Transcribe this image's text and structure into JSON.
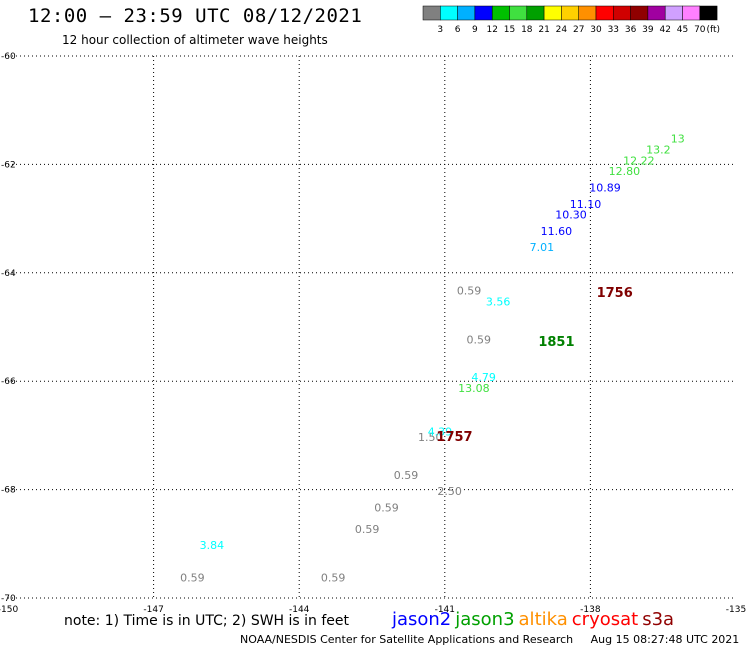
{
  "header": {
    "title": "12:00 – 23:59 UTC 08/12/2021",
    "subtitle": "12 hour collection of altimeter wave heights"
  },
  "colorbar": {
    "colors": [
      "#808080",
      "#00ffff",
      "#00b0ff",
      "#0000ff",
      "#00c000",
      "#40e040",
      "#00a000",
      "#ffff00",
      "#ffd000",
      "#ff9000",
      "#ff0000",
      "#d00000",
      "#900000",
      "#a000a0",
      "#d0a0ff",
      "#ff80ff",
      "#000000"
    ],
    "labels": [
      "3",
      "6",
      "9",
      "12",
      "15",
      "18",
      "21",
      "24",
      "27",
      "30",
      "33",
      "36",
      "39",
      "42",
      "45",
      "70"
    ],
    "unit": "(ft)"
  },
  "chart_data": {
    "type": "scatter",
    "title": "12:00 – 23:59 UTC 08/12/2021",
    "subtitle": "12 hour collection of altimeter wave heights",
    "xlabel": "",
    "ylabel": "",
    "xlim": [
      -150,
      -135
    ],
    "ylim": [
      -70,
      -60
    ],
    "x_ticks": [
      "-150",
      "-147",
      "-144",
      "-141",
      "-138",
      "-135"
    ],
    "y_ticks": [
      "-60",
      "-62",
      "-64",
      "-66",
      "-68",
      "-70"
    ],
    "grid": true,
    "series": [
      {
        "points": [
          {
            "x": -140.5,
            "y": -64.4,
            "label": "0.59",
            "color": "#808080"
          },
          {
            "x": -140.3,
            "y": -65.3,
            "label": "0.59",
            "color": "#808080"
          },
          {
            "x": -142.2,
            "y": -68.4,
            "label": "0.59",
            "color": "#808080"
          },
          {
            "x": -141.8,
            "y": -67.8,
            "label": "0.59",
            "color": "#808080"
          },
          {
            "x": -142.6,
            "y": -68.8,
            "label": "0.59",
            "color": "#808080"
          },
          {
            "x": -143.3,
            "y": -69.7,
            "label": "0.59",
            "color": "#808080"
          },
          {
            "x": -146.2,
            "y": -69.7,
            "label": "0.59",
            "color": "#808080"
          },
          {
            "x": -141.3,
            "y": -67.1,
            "label": "1.50",
            "color": "#808080"
          },
          {
            "x": -140.9,
            "y": -68.1,
            "label": "2.50",
            "color": "#808080"
          },
          {
            "x": -141.1,
            "y": -67.0,
            "label": "4.39",
            "color": "#00ffff"
          },
          {
            "x": -140.2,
            "y": -66.0,
            "label": "4.79",
            "color": "#00ffff"
          },
          {
            "x": -139.9,
            "y": -64.6,
            "label": "3.56",
            "color": "#00ffff"
          },
          {
            "x": -145.8,
            "y": -69.1,
            "label": "3.84",
            "color": "#00ffff"
          },
          {
            "x": -139.0,
            "y": -63.6,
            "label": "7.01",
            "color": "#00b0ff"
          },
          {
            "x": -140.4,
            "y": -66.2,
            "label": "13.08",
            "color": "#40e040"
          },
          {
            "x": -138.7,
            "y": -63.3,
            "label": "11.60",
            "color": "#0000ff"
          },
          {
            "x": -138.4,
            "y": -63.0,
            "label": "10.30",
            "color": "#0000ff"
          },
          {
            "x": -138.1,
            "y": -62.8,
            "label": "11.10",
            "color": "#0000ff"
          },
          {
            "x": -137.7,
            "y": -62.5,
            "label": "10.89",
            "color": "#0000ff"
          },
          {
            "x": -137.3,
            "y": -62.2,
            "label": "12.80",
            "color": "#40e040"
          },
          {
            "x": -137.0,
            "y": -62.0,
            "label": "12.22",
            "color": "#40e040"
          },
          {
            "x": -136.6,
            "y": -61.8,
            "label": "13.2",
            "color": "#40e040"
          },
          {
            "x": -136.2,
            "y": -61.6,
            "label": "13",
            "color": "#40e040"
          }
        ]
      }
    ],
    "annotations": [
      {
        "x": -137.5,
        "y": -64.45,
        "text": "1756",
        "color": "#800000"
      },
      {
        "x": -138.7,
        "y": -65.35,
        "text": "1851",
        "color": "#008000"
      },
      {
        "x": -140.8,
        "y": -67.1,
        "text": "1757",
        "color": "#800000"
      }
    ]
  },
  "footer": {
    "note": "note: 1) Time is in UTC; 2) SWH is in feet",
    "satellites": [
      {
        "name": "jason2",
        "color": "#0000ff"
      },
      {
        "name": "jason3",
        "color": "#00a000"
      },
      {
        "name": "altika",
        "color": "#ff9000"
      },
      {
        "name": "cryosat",
        "color": "#ff0000"
      },
      {
        "name": "s3a",
        "color": "#900000"
      }
    ],
    "credit": "NOAA/NESDIS Center for Satellite Applications and Research",
    "timestamp": "Aug 15 08:27:48 UTC 2021"
  }
}
